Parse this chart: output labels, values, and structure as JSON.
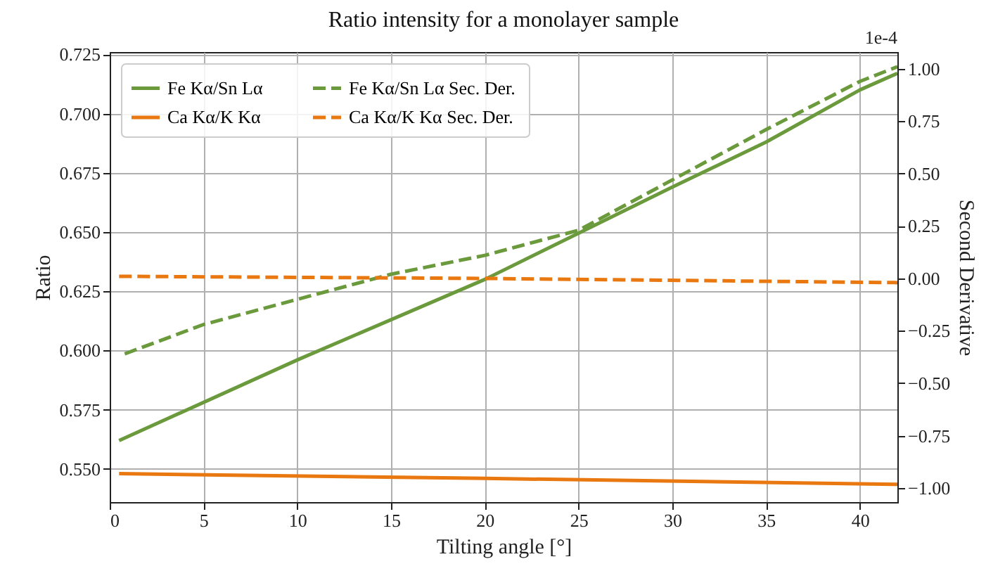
{
  "chart_data": {
    "type": "line",
    "title": "Ratio intensity for a monolayer sample",
    "xlabel": "Tilting angle [°]",
    "ylabel": "Ratio",
    "y2label": "Second Derivative",
    "annotations": [
      "1e-4"
    ],
    "xlim": [
      0,
      42
    ],
    "xticks": [
      0,
      5,
      10,
      15,
      20,
      25,
      30,
      35,
      40
    ],
    "ylim": [
      0.536,
      0.726
    ],
    "yticks": [
      {
        "value": 0.55,
        "label": "0.550"
      },
      {
        "value": 0.575,
        "label": "0.575"
      },
      {
        "value": 0.6,
        "label": "0.600"
      },
      {
        "value": 0.625,
        "label": "0.625"
      },
      {
        "value": 0.65,
        "label": "0.650"
      },
      {
        "value": 0.675,
        "label": "0.675"
      },
      {
        "value": 0.7,
        "label": "0.700"
      },
      {
        "value": 0.725,
        "label": "0.725"
      }
    ],
    "y2lim": [
      -1.067,
      1.08
    ],
    "y2ticks": [
      {
        "value": -1,
        "label": "−1.00"
      },
      {
        "value": -0.75,
        "label": "−0.75"
      },
      {
        "value": -0.5,
        "label": "−0.50"
      },
      {
        "value": -0.25,
        "label": "−0.25"
      },
      {
        "value": 0,
        "label": "0.00"
      },
      {
        "value": 0.25,
        "label": "0.25"
      },
      {
        "value": 0.5,
        "label": "0.50"
      },
      {
        "value": 0.75,
        "label": "0.75"
      },
      {
        "value": 1,
        "label": "1.00"
      }
    ],
    "grid": true,
    "legend": "top left",
    "marker": "none",
    "series": [
      {
        "name": "Fe Kα/Sn Lα",
        "color": "#6b9a3c",
        "line_style": "solid",
        "x": [
          0.5,
          10,
          20,
          30,
          35,
          40,
          42
        ],
        "values": [
          0.562,
          0.596,
          0.63,
          0.669,
          0.688,
          0.71,
          0.717
        ]
      },
      {
        "name": "Ca Kα/K Kα",
        "color": "#e8780f",
        "line_style": "solid",
        "x": [
          0.5,
          20,
          42
        ],
        "values": [
          0.548,
          0.546,
          0.5435
        ]
      },
      {
        "name": "Fe Kα/Sn Lα  Sec. Der.",
        "color": "#6b9a3c",
        "line_style": "dashed",
        "axis": "y2",
        "x": [
          0.8,
          5,
          10,
          15,
          20,
          25,
          30,
          35,
          40,
          42
        ],
        "values": [
          -0.36,
          -0.22,
          -0.1,
          0.02,
          0.11,
          0.23,
          0.47,
          0.71,
          0.94,
          1.01
        ]
      },
      {
        "name": "Ca Kα/K Kα Sec. Der.",
        "color": "#e8780f",
        "line_style": "dashed",
        "axis": "y2",
        "x": [
          0.5,
          20,
          42
        ],
        "values": [
          0.01,
          0,
          -0.02
        ]
      }
    ]
  }
}
